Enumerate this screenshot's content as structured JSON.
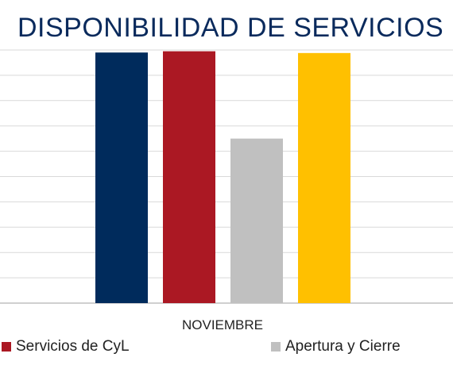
{
  "chart_data": {
    "type": "bar",
    "title": "DISPONIBILIDAD DE SERVICIOS",
    "categories": [
      "NOVIEMBRE"
    ],
    "ylim": [
      0,
      100
    ],
    "grid": true,
    "legend_position": "bottom",
    "series": [
      {
        "values": [
          99
        ],
        "color": "#002b5c"
      },
      {
        "name": "Servicios de CyL",
        "values": [
          99.5
        ],
        "color": "#ab1823"
      },
      {
        "name": "Apertura y Cierre",
        "values": [
          65
        ],
        "color": "#c0c0c0"
      },
      {
        "values": [
          98.8
        ],
        "color": "#ffc000"
      }
    ]
  },
  "colors": {
    "title": "#0a2a5c",
    "grid": "#d9d9d9",
    "axis": "#bfbfbf",
    "text": "#222222"
  }
}
